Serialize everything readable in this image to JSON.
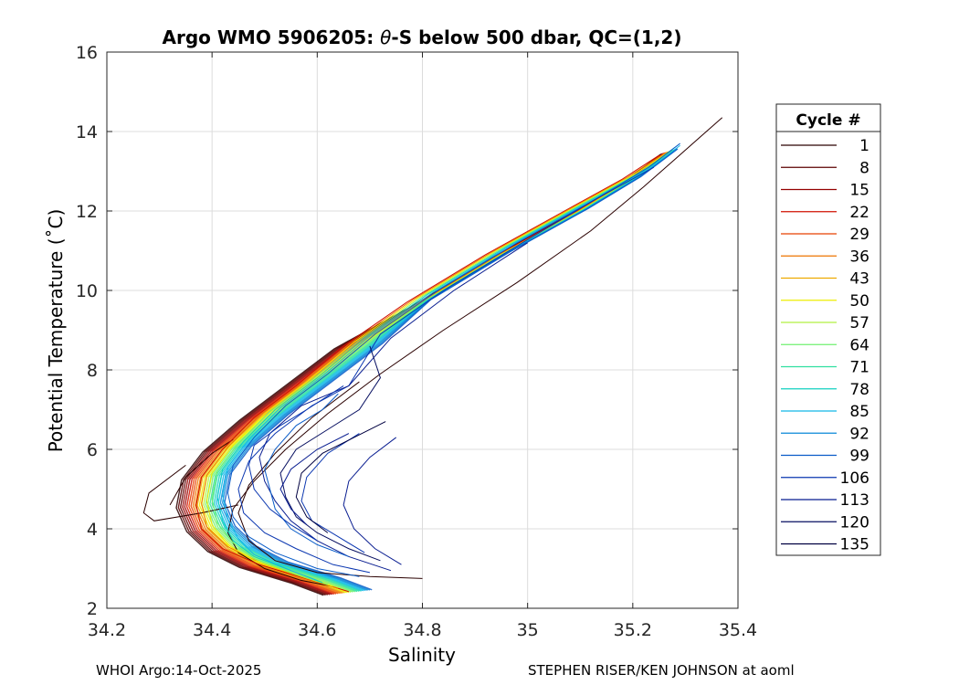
{
  "chart_data": {
    "type": "line",
    "title": "Argo WMO 5906205: θ-S below 500 dbar,  QC=(1,2)",
    "title_parts": {
      "before": "Argo WMO 5906205: ",
      "symbol": "θ",
      "after": "-S below 500 dbar,  QC=(1,2)"
    },
    "xlabel": "Salinity",
    "ylabel": "Potential Temperature (˚C)",
    "xlim": [
      34.2,
      35.4
    ],
    "ylim": [
      2,
      16
    ],
    "xticks": [
      34.2,
      34.4,
      34.6,
      34.8,
      35,
      35.2,
      35.4
    ],
    "xtick_labels": [
      "34.2",
      "34.4",
      "34.6",
      "34.8",
      "35",
      "35.2",
      "35.4"
    ],
    "yticks": [
      2,
      4,
      6,
      8,
      10,
      12,
      14,
      16
    ],
    "ytick_labels": [
      "2",
      "4",
      "6",
      "8",
      "10",
      "12",
      "14",
      "16"
    ],
    "grid": true,
    "legend": {
      "title": "Cycle #",
      "placement": "right, outside plot",
      "entries": [
        "1",
        "8",
        "15",
        "22",
        "29",
        "36",
        "43",
        "50",
        "57",
        "64",
        "71",
        "78",
        "85",
        "92",
        "99",
        "106",
        "113",
        "120",
        "135"
      ],
      "colors": [
        "#2a0000",
        "#5c0000",
        "#950000",
        "#d01000",
        "#e84000",
        "#ee7400",
        "#eeaa00",
        "#eeee00",
        "#b0f040",
        "#70f070",
        "#30e0a0",
        "#10d0c0",
        "#10b8e8",
        "#0a88d8",
        "#0a5cc8",
        "#0a36b0",
        "#081c90",
        "#060e60",
        "#000040"
      ]
    },
    "envelope": {
      "salinity": [
        34.66,
        34.6,
        34.5,
        34.44,
        34.4,
        34.38,
        34.39,
        34.43,
        34.5,
        34.58,
        34.68,
        34.8,
        34.95,
        35.1,
        35.2,
        35.27
      ],
      "temperature": [
        2.4,
        2.7,
        3.1,
        3.5,
        4.0,
        4.6,
        5.3,
        6.0,
        6.8,
        7.6,
        8.6,
        9.7,
        10.9,
        12.0,
        12.8,
        13.5
      ]
    },
    "series": [
      {
        "colorIndex": 0,
        "s": [
          34.63,
          34.57,
          34.5,
          34.45,
          34.43,
          34.44,
          34.48,
          34.54,
          34.62,
          34.72,
          34.84,
          34.98,
          35.12,
          35.22,
          35.28,
          35.37
        ],
        "t": [
          2.55,
          2.7,
          3.0,
          3.4,
          3.9,
          4.5,
          5.2,
          6.0,
          6.9,
          7.9,
          9.0,
          10.2,
          11.5,
          12.6,
          13.3,
          14.35
        ]
      },
      {
        "colorIndex": 0,
        "s": [
          34.8,
          34.7,
          34.6,
          34.52,
          34.47,
          34.45,
          34.47,
          34.52,
          34.59,
          34.68
        ],
        "t": [
          2.75,
          2.8,
          2.9,
          3.2,
          3.7,
          4.4,
          5.1,
          5.9,
          6.8,
          7.7
        ]
      },
      {
        "colorIndex": 0,
        "s": [
          34.35,
          34.28,
          34.27,
          34.29,
          34.38,
          34.45
        ],
        "t": [
          5.6,
          4.9,
          4.4,
          4.2,
          4.4,
          4.6
        ]
      },
      {
        "colorIndex": 0,
        "s": [
          34.44,
          34.4,
          34.35,
          34.32
        ],
        "t": [
          6.25,
          5.9,
          5.3,
          4.6
        ]
      },
      {
        "colorIndex": 3,
        "s": [
          34.66,
          34.59,
          34.49,
          34.42,
          34.38,
          34.37,
          34.38,
          34.42,
          34.48,
          34.56,
          34.65,
          34.77,
          34.92,
          35.07,
          35.18,
          35.25
        ],
        "t": [
          2.42,
          2.7,
          3.1,
          3.5,
          4.0,
          4.6,
          5.3,
          6.0,
          6.8,
          7.6,
          8.6,
          9.7,
          10.9,
          12.0,
          12.8,
          13.4
        ]
      },
      {
        "colorIndex": 5,
        "s": [
          34.64,
          34.58,
          34.49,
          34.43,
          34.39,
          34.38,
          34.39,
          34.43,
          34.49,
          34.57,
          34.66,
          34.78,
          34.93,
          35.08,
          35.19,
          35.26
        ],
        "t": [
          2.5,
          2.75,
          3.15,
          3.55,
          4.05,
          4.65,
          5.35,
          6.05,
          6.85,
          7.65,
          8.65,
          9.75,
          10.95,
          12.05,
          12.85,
          13.45
        ]
      },
      {
        "colorIndex": 7,
        "s": [
          34.63,
          34.57,
          34.48,
          34.43,
          34.4,
          34.39,
          34.4,
          34.44,
          34.5,
          34.58,
          34.67,
          34.79,
          34.94,
          35.09,
          35.2,
          35.27
        ],
        "t": [
          2.55,
          2.8,
          3.2,
          3.6,
          4.1,
          4.7,
          5.4,
          6.1,
          6.9,
          7.7,
          8.7,
          9.8,
          11.0,
          12.1,
          12.9,
          13.5
        ]
      },
      {
        "colorIndex": 9,
        "s": [
          34.62,
          34.56,
          34.48,
          34.44,
          34.41,
          34.4,
          34.41,
          34.45,
          34.51,
          34.59,
          34.68,
          34.8,
          34.95,
          35.1,
          35.21,
          35.28
        ],
        "t": [
          2.6,
          2.85,
          3.25,
          3.65,
          4.15,
          4.75,
          5.45,
          6.15,
          6.95,
          7.75,
          8.75,
          9.85,
          11.05,
          12.15,
          12.95,
          13.55
        ]
      },
      {
        "colorIndex": 11,
        "s": [
          34.61,
          34.56,
          34.48,
          34.44,
          34.42,
          34.41,
          34.42,
          34.46,
          34.52,
          34.6,
          34.69,
          34.81,
          34.96,
          35.11,
          35.22,
          35.28
        ],
        "t": [
          2.65,
          2.9,
          3.3,
          3.7,
          4.2,
          4.8,
          5.5,
          6.2,
          7.0,
          7.8,
          8.8,
          9.9,
          11.1,
          12.2,
          13.0,
          13.6
        ]
      },
      {
        "colorIndex": 12,
        "s": [
          34.6,
          34.55,
          34.48,
          34.45,
          34.43,
          34.42,
          34.43,
          34.47,
          34.53,
          34.61,
          34.7,
          34.82,
          34.97,
          35.12,
          35.23,
          35.29
        ],
        "t": [
          2.7,
          2.95,
          3.35,
          3.75,
          4.25,
          4.85,
          5.55,
          6.25,
          7.05,
          7.85,
          8.85,
          9.95,
          11.15,
          12.25,
          13.05,
          13.65
        ]
      },
      {
        "colorIndex": 14,
        "s": [
          34.68,
          34.6,
          34.52,
          34.47,
          34.44,
          34.43,
          34.44,
          34.48,
          34.54,
          34.62,
          34.71,
          34.83,
          34.98,
          35.13,
          35.23,
          35.29
        ],
        "t": [
          2.8,
          3.0,
          3.4,
          3.8,
          4.3,
          4.9,
          5.6,
          6.3,
          7.1,
          7.9,
          8.9,
          10.0,
          11.2,
          12.3,
          13.1,
          13.7
        ]
      },
      {
        "colorIndex": 15,
        "s": [
          34.7,
          34.63,
          34.56,
          34.5,
          34.46,
          34.45,
          34.47,
          34.52,
          34.59,
          34.66,
          34.72,
          34.84,
          34.99,
          35.13,
          35.24
        ],
        "t": [
          2.9,
          3.1,
          3.5,
          3.9,
          4.4,
          5.0,
          5.7,
          6.4,
          7.1,
          7.6,
          8.9,
          10.0,
          11.2,
          12.3,
          13.1
        ]
      },
      {
        "colorIndex": 16,
        "s": [
          34.74,
          34.66,
          34.6,
          34.55,
          34.52,
          34.5,
          34.49,
          34.51,
          34.57,
          34.66,
          34.74,
          34.86,
          35.0
        ],
        "t": [
          2.95,
          3.3,
          3.7,
          4.2,
          4.7,
          5.2,
          5.8,
          6.4,
          7.1,
          7.6,
          8.8,
          10.0,
          11.2
        ]
      },
      {
        "colorIndex": 17,
        "s": [
          34.72,
          34.66,
          34.6,
          34.56,
          34.54,
          34.53,
          34.56,
          34.62,
          34.68,
          34.72,
          34.7
        ],
        "t": [
          3.2,
          3.5,
          3.9,
          4.3,
          4.8,
          5.4,
          6.0,
          6.5,
          7.0,
          7.8,
          8.6
        ]
      },
      {
        "colorIndex": 15,
        "s": [
          34.69,
          34.64,
          34.59,
          34.57,
          34.58,
          34.62,
          34.68
        ],
        "t": [
          3.4,
          3.8,
          4.2,
          4.7,
          5.3,
          5.9,
          6.4
        ]
      },
      {
        "colorIndex": 14,
        "s": [
          34.66,
          34.6,
          34.55,
          34.52,
          34.51,
          34.5,
          34.52,
          34.56,
          34.61,
          34.64
        ],
        "t": [
          3.3,
          3.6,
          4.0,
          4.5,
          5.0,
          5.5,
          6.0,
          6.6,
          7.0,
          7.4
        ]
      },
      {
        "colorIndex": 16,
        "s": [
          34.76,
          34.71,
          34.67,
          34.65,
          34.66,
          34.7,
          34.75
        ],
        "t": [
          3.1,
          3.5,
          4.0,
          4.6,
          5.2,
          5.8,
          6.3
        ]
      },
      {
        "colorIndex": 15,
        "s": [
          34.6,
          34.55,
          34.51,
          34.48,
          34.47,
          34.48,
          34.53,
          34.58,
          34.65
        ],
        "t": [
          3.7,
          4.1,
          4.5,
          5.0,
          5.6,
          6.1,
          6.6,
          7.0,
          7.6
        ]
      },
      {
        "colorIndex": 18,
        "s": [
          34.62,
          34.58,
          34.56,
          34.57,
          34.61,
          34.67,
          34.73
        ],
        "t": [
          3.9,
          4.3,
          4.8,
          5.4,
          5.9,
          6.3,
          6.7
        ]
      },
      {
        "colorIndex": 16,
        "s": [
          34.58,
          34.55,
          34.53,
          34.55,
          34.6,
          34.66
        ],
        "t": [
          4.1,
          4.5,
          5.0,
          5.5,
          6.0,
          6.4
        ]
      }
    ]
  },
  "footer": {
    "left": "WHOI Argo:14-Oct-2025",
    "right": "STEPHEN RISER/KEN JOHNSON at aoml"
  }
}
